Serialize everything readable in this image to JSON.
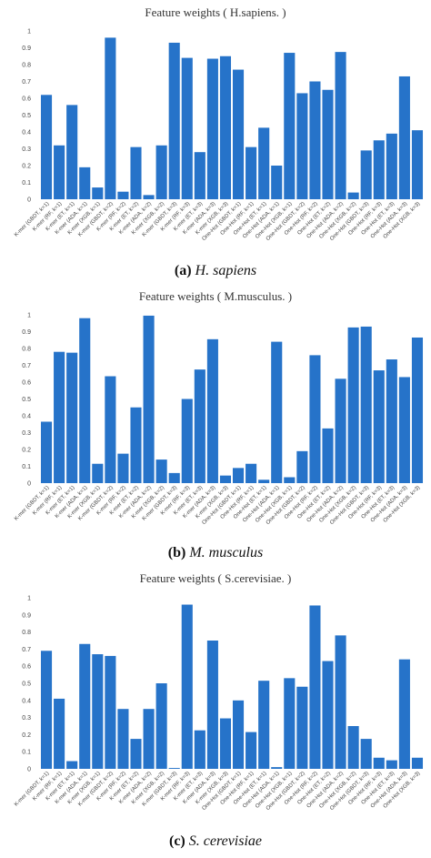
{
  "bar_color": "#2673c9",
  "categories": [
    "K-mer (GBDT, k=1)",
    "K-mer (RF, k=1)",
    "K-mer (ET, k=1)",
    "K-mer (ADA, k=1)",
    "K-mer (XGB, k=1)",
    "K-mer (GBDT, k=2)",
    "K-mer (RF, k=2)",
    "K-mer (ET, k=2)",
    "K-mer (ADA, k=2)",
    "K-mer (XGB, k=2)",
    "K-mer (GBDT, k=3)",
    "K-mer (RF, k=3)",
    "K-mer (ET, k=3)",
    "K-mer (ADA, k=3)",
    "K-mer (XGB, k=3)",
    "One-Hot (GBDT, k=1)",
    "One-Hot (RF, k=1)",
    "One-Hot (ET, k=1)",
    "One-Hot (ADA, k=1)",
    "One-Hot (XGB, k=1)",
    "One-Hot (GBDT, k=2)",
    "One-Hot (RF, k=2)",
    "One-Hot (ET, k=2)",
    "One-Hot (ADA, k=2)",
    "One-Hot (XGB, k=2)",
    "One-Hot (GBDT, k=3)",
    "One-Hot (RF, k=3)",
    "One-Hot (ET, k=3)",
    "One-Hot (ADA, k=3)",
    "One-Hot (XGB, k=3)"
  ],
  "chart_data": [
    {
      "type": "bar",
      "title": "Feature weights ( H.sapiens. )",
      "caption_letter": "(a)",
      "caption_species": "H. sapiens",
      "ylim": [
        0,
        1
      ],
      "yticks": [
        "0",
        "0.1",
        "0.2",
        "0.3",
        "0.4",
        "0.5",
        "0.6",
        "0.7",
        "0.8",
        "0.9",
        "1"
      ],
      "grid": false,
      "values": [
        0.62,
        0.32,
        0.56,
        0.19,
        0.07,
        0.96,
        0.045,
        0.31,
        0.025,
        0.32,
        0.93,
        0.84,
        0.28,
        0.835,
        0.85,
        0.77,
        0.31,
        0.425,
        0.2,
        0.87,
        0.63,
        0.7,
        0.65,
        0.875,
        0.04,
        0.29,
        0.35,
        0.39,
        0.73,
        0.41
      ]
    },
    {
      "type": "bar",
      "title": "Feature weights ( M.musculus. )",
      "caption_letter": "(b)",
      "caption_species": "M. musculus",
      "ylim": [
        0,
        1
      ],
      "yticks": [
        "0",
        "0.1",
        "0.2",
        "0.3",
        "0.4",
        "0.5",
        "0.6",
        "0.7",
        "0.8",
        "0.9",
        "1"
      ],
      "grid": false,
      "values": [
        0.365,
        0.78,
        0.775,
        0.98,
        0.115,
        0.635,
        0.175,
        0.45,
        0.995,
        0.14,
        0.06,
        0.5,
        0.675,
        0.855,
        0.045,
        0.09,
        0.115,
        0.02,
        0.84,
        0.035,
        0.19,
        0.76,
        0.325,
        0.62,
        0.925,
        0.93,
        0.67,
        0.735,
        0.63,
        0.865
      ]
    },
    {
      "type": "bar",
      "title": "Feature weights ( S.cerevisiae. )",
      "caption_letter": "(c)",
      "caption_species": "S. cerevisiae",
      "ylim": [
        0,
        1
      ],
      "yticks": [
        "0",
        "0.1",
        "0.2",
        "0.3",
        "0.4",
        "0.5",
        "0.6",
        "0.7",
        "0.8",
        "0.9",
        "1"
      ],
      "grid": false,
      "values": [
        0.69,
        0.41,
        0.045,
        0.73,
        0.67,
        0.66,
        0.35,
        0.175,
        0.35,
        0.5,
        0.005,
        0.96,
        0.225,
        0.75,
        0.295,
        0.4,
        0.215,
        0.515,
        0.01,
        0.53,
        0.48,
        0.955,
        0.63,
        0.78,
        0.25,
        0.175,
        0.065,
        0.05,
        0.64,
        0.065
      ]
    }
  ]
}
